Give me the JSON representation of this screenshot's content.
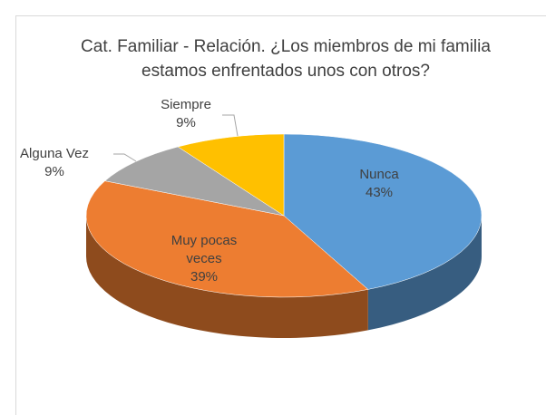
{
  "chart_data": {
    "type": "pie3d",
    "title": "Cat. Familiar - Relación. ¿Los miembros de mi familia estamos enfrentados unos con otros?",
    "categories": [
      "Nunca",
      "Muy pocas veces",
      "Alguna Vez",
      "Siempre"
    ],
    "values": [
      43,
      39,
      9,
      9
    ],
    "value_labels": [
      "43%",
      "39%",
      "9%",
      "9%"
    ],
    "colors": [
      "#5b9bd5",
      "#ed7d31",
      "#a5a5a5",
      "#ffc000"
    ]
  }
}
